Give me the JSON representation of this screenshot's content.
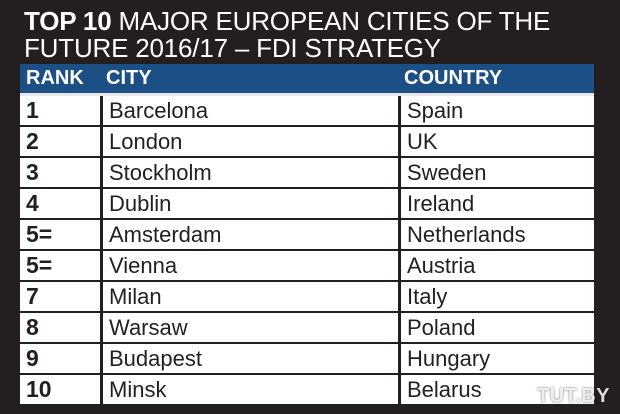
{
  "title": {
    "bold": "TOP 10",
    "rest": "MAJOR EUROPEAN CITIES OF THE FUTURE 2016/17 – FDI STRATEGY"
  },
  "table": {
    "headers": {
      "rank": "RANK",
      "city": "CITY",
      "country": "COUNTRY"
    },
    "rows": [
      {
        "rank": "1",
        "city": "Barcelona",
        "country": "Spain"
      },
      {
        "rank": "2",
        "city": "London",
        "country": "UK"
      },
      {
        "rank": "3",
        "city": "Stockholm",
        "country": "Sweden"
      },
      {
        "rank": "4",
        "city": "Dublin",
        "country": "Ireland"
      },
      {
        "rank": "5=",
        "city": "Amsterdam",
        "country": "Netherlands"
      },
      {
        "rank": "5=",
        "city": "Vienna",
        "country": "Austria"
      },
      {
        "rank": "7",
        "city": "Milan",
        "country": "Italy"
      },
      {
        "rank": "8",
        "city": "Warsaw",
        "country": "Poland"
      },
      {
        "rank": "9",
        "city": "Budapest",
        "country": "Hungary"
      },
      {
        "rank": "10",
        "city": "Minsk",
        "country": "Belarus"
      }
    ]
  },
  "watermark": "TUT.BY",
  "colors": {
    "header_bg": "#1c4f85",
    "page_bg": "#231f20"
  }
}
